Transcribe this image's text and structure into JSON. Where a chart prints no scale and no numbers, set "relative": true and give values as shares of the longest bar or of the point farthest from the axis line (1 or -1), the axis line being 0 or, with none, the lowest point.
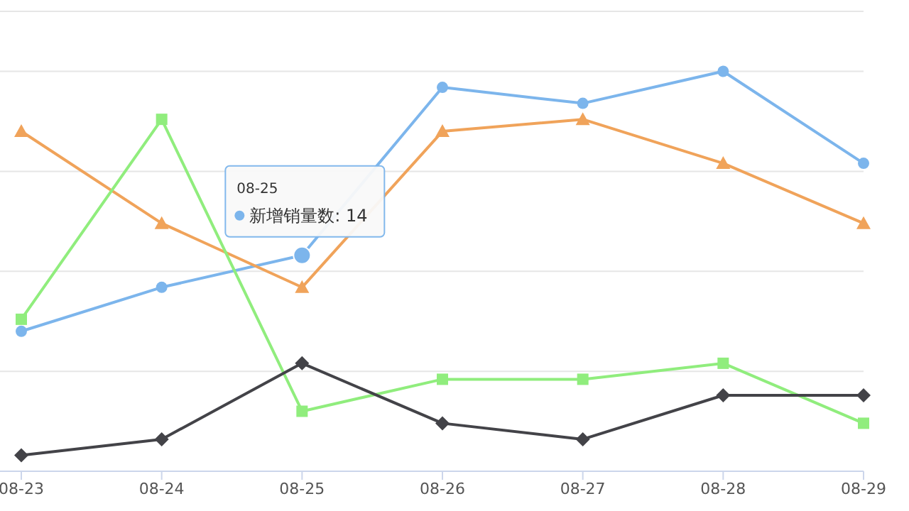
{
  "chart_data": {
    "type": "line",
    "relative": true,
    "categories": [
      "08-23",
      "08-24",
      "08-25",
      "08-26",
      "08-27",
      "08-28",
      "08-29"
    ],
    "series": [
      {
        "color": "#7cb5ec",
        "marker": "circle",
        "values": [
          0.35,
          0.46,
          0.54,
          0.96,
          0.92,
          1,
          0.77
        ]
      },
      {
        "color": "#f0a35a",
        "marker": "triangle",
        "values": [
          0.85,
          0.62,
          0.46,
          0.85,
          0.88,
          0.77,
          0.62
        ]
      },
      {
        "color": "#90ed7d",
        "marker": "square",
        "values": [
          0.38,
          0.88,
          0.15,
          0.23,
          0.23,
          0.27,
          0.12
        ]
      },
      {
        "color": "#434348",
        "marker": "diamond",
        "values": [
          0.04,
          0.08,
          0.27,
          0.12,
          0.08,
          0.19,
          0.19
        ]
      }
    ],
    "grid": "y",
    "legend": false,
    "annotations": [
      "08-25",
      "新增销量数: 14"
    ]
  }
}
